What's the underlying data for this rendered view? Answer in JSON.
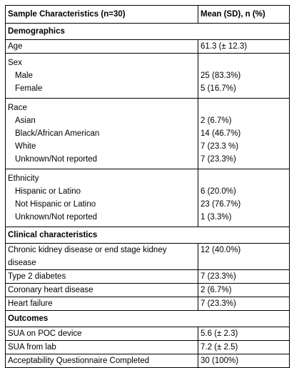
{
  "header": {
    "col1": "Sample Characteristics (n=30)",
    "col2": "Mean (SD), n (%)"
  },
  "sections": {
    "demographics": "Demographics",
    "clinical": "Clinical characteristics",
    "outcomes": "Outcomes"
  },
  "age": {
    "label": "Age",
    "value": "61.3 (± 12.3)"
  },
  "sex": {
    "label": "Sex",
    "items": [
      {
        "label": "Male",
        "value": "25 (83.3%)"
      },
      {
        "label": "Female",
        "value": "5 (16.7%)"
      }
    ]
  },
  "race": {
    "label": "Race",
    "items": [
      {
        "label": "Asian",
        "value": "2 (6.7%)"
      },
      {
        "label": "Black/African American",
        "value": "14 (46.7%)"
      },
      {
        "label": "White",
        "value": "7 (23.3 %)"
      },
      {
        "label": "Unknown/Not reported",
        "value": "7 (23.3%)"
      }
    ]
  },
  "ethnicity": {
    "label": "Ethnicity",
    "items": [
      {
        "label": "Hispanic or Latino",
        "value": "6 (20.0%)"
      },
      {
        "label": "Not Hispanic or Latino",
        "value": "23 (76.7%)"
      },
      {
        "label": "Unknown/Not reported",
        "value": "1 (3.3%)"
      }
    ]
  },
  "clinical": [
    {
      "label_line1": "Chronic kidney disease or end stage kidney",
      "label_line2": "disease",
      "value": "12 (40.0%)"
    },
    {
      "label": "Type 2 diabetes",
      "value": "7 (23.3%)"
    },
    {
      "label": "Coronary heart disease",
      "value": "2 (6.7%)"
    },
    {
      "label": "Heart failure",
      "value": "7 (23.3%)"
    }
  ],
  "outcomes": [
    {
      "label": "SUA on POC device",
      "value": "5.6 (± 2.3)"
    },
    {
      "label": "SUA from lab",
      "value": "7.2 (± 2.5)"
    },
    {
      "label": "Acceptability Questionnaire Completed",
      "value": "30 (100%)"
    }
  ]
}
